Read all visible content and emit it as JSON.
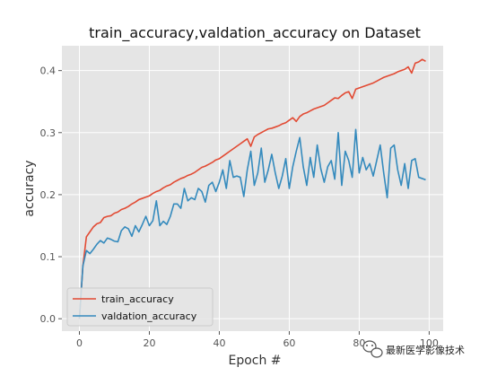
{
  "chart_data": {
    "type": "line",
    "title": "train_accuracy,valdation_accuracy on Dataset",
    "xlabel": "Epoch #",
    "ylabel": "accuracy",
    "xlim": [
      -5,
      104
    ],
    "ylim": [
      -0.02,
      0.44
    ],
    "xticks": [
      0,
      20,
      40,
      60,
      80,
      100
    ],
    "yticks": [
      0.0,
      0.1,
      0.2,
      0.3,
      0.4
    ],
    "xtick_labels": [
      "0",
      "20",
      "40",
      "60",
      "80",
      "100"
    ],
    "ytick_labels": [
      "0.0",
      "0.1",
      "0.2",
      "0.3",
      "0.4"
    ],
    "grid": true,
    "background": "#e5e5e5",
    "legend_position": "lower-left",
    "x": [
      0,
      1,
      2,
      3,
      4,
      5,
      6,
      7,
      8,
      9,
      10,
      11,
      12,
      13,
      14,
      15,
      16,
      17,
      18,
      19,
      20,
      21,
      22,
      23,
      24,
      25,
      26,
      27,
      28,
      29,
      30,
      31,
      32,
      33,
      34,
      35,
      36,
      37,
      38,
      39,
      40,
      41,
      42,
      43,
      44,
      45,
      46,
      47,
      48,
      49,
      50,
      51,
      52,
      53,
      54,
      55,
      56,
      57,
      58,
      59,
      60,
      61,
      62,
      63,
      64,
      65,
      66,
      67,
      68,
      69,
      70,
      71,
      72,
      73,
      74,
      75,
      76,
      77,
      78,
      79,
      80,
      81,
      82,
      83,
      84,
      85,
      86,
      87,
      88,
      89,
      90,
      91,
      92,
      93,
      94,
      95,
      96,
      97,
      98,
      99
    ],
    "series": [
      {
        "name": "train_accuracy",
        "color": "#e24a33",
        "values": [
          0.0,
          0.085,
          0.132,
          0.14,
          0.148,
          0.153,
          0.155,
          0.163,
          0.165,
          0.166,
          0.17,
          0.172,
          0.176,
          0.178,
          0.181,
          0.185,
          0.188,
          0.192,
          0.194,
          0.196,
          0.198,
          0.202,
          0.205,
          0.207,
          0.211,
          0.214,
          0.216,
          0.22,
          0.223,
          0.226,
          0.228,
          0.231,
          0.233,
          0.236,
          0.24,
          0.244,
          0.246,
          0.249,
          0.252,
          0.256,
          0.258,
          0.262,
          0.266,
          0.27,
          0.274,
          0.278,
          0.282,
          0.286,
          0.29,
          0.278,
          0.293,
          0.297,
          0.3,
          0.303,
          0.306,
          0.307,
          0.309,
          0.311,
          0.314,
          0.316,
          0.32,
          0.324,
          0.318,
          0.326,
          0.33,
          0.332,
          0.335,
          0.338,
          0.34,
          0.342,
          0.344,
          0.348,
          0.352,
          0.356,
          0.355,
          0.36,
          0.364,
          0.366,
          0.355,
          0.37,
          0.372,
          0.374,
          0.376,
          0.378,
          0.38,
          0.383,
          0.386,
          0.389,
          0.391,
          0.393,
          0.395,
          0.398,
          0.4,
          0.402,
          0.406,
          0.396,
          0.412,
          0.414,
          0.418,
          0.415
        ]
      },
      {
        "name": "valdation_accuracy",
        "color": "#348abd",
        "values": [
          0.0,
          0.085,
          0.11,
          0.105,
          0.112,
          0.12,
          0.126,
          0.122,
          0.13,
          0.128,
          0.125,
          0.124,
          0.142,
          0.148,
          0.145,
          0.133,
          0.15,
          0.14,
          0.152,
          0.165,
          0.15,
          0.158,
          0.19,
          0.15,
          0.157,
          0.152,
          0.165,
          0.185,
          0.185,
          0.178,
          0.21,
          0.19,
          0.195,
          0.192,
          0.21,
          0.205,
          0.188,
          0.215,
          0.22,
          0.205,
          0.22,
          0.24,
          0.21,
          0.255,
          0.228,
          0.23,
          0.228,
          0.197,
          0.24,
          0.27,
          0.215,
          0.235,
          0.275,
          0.22,
          0.24,
          0.265,
          0.235,
          0.21,
          0.23,
          0.258,
          0.21,
          0.245,
          0.27,
          0.292,
          0.245,
          0.215,
          0.26,
          0.228,
          0.28,
          0.242,
          0.22,
          0.245,
          0.255,
          0.225,
          0.3,
          0.215,
          0.27,
          0.255,
          0.228,
          0.305,
          0.235,
          0.26,
          0.24,
          0.25,
          0.23,
          0.255,
          0.28,
          0.235,
          0.195,
          0.275,
          0.28,
          0.24,
          0.215,
          0.25,
          0.21,
          0.255,
          0.258,
          0.228,
          0.226,
          0.224
        ]
      }
    ]
  },
  "watermark": {
    "text": "最新医学影像技术",
    "icon": "wechat-icon"
  }
}
